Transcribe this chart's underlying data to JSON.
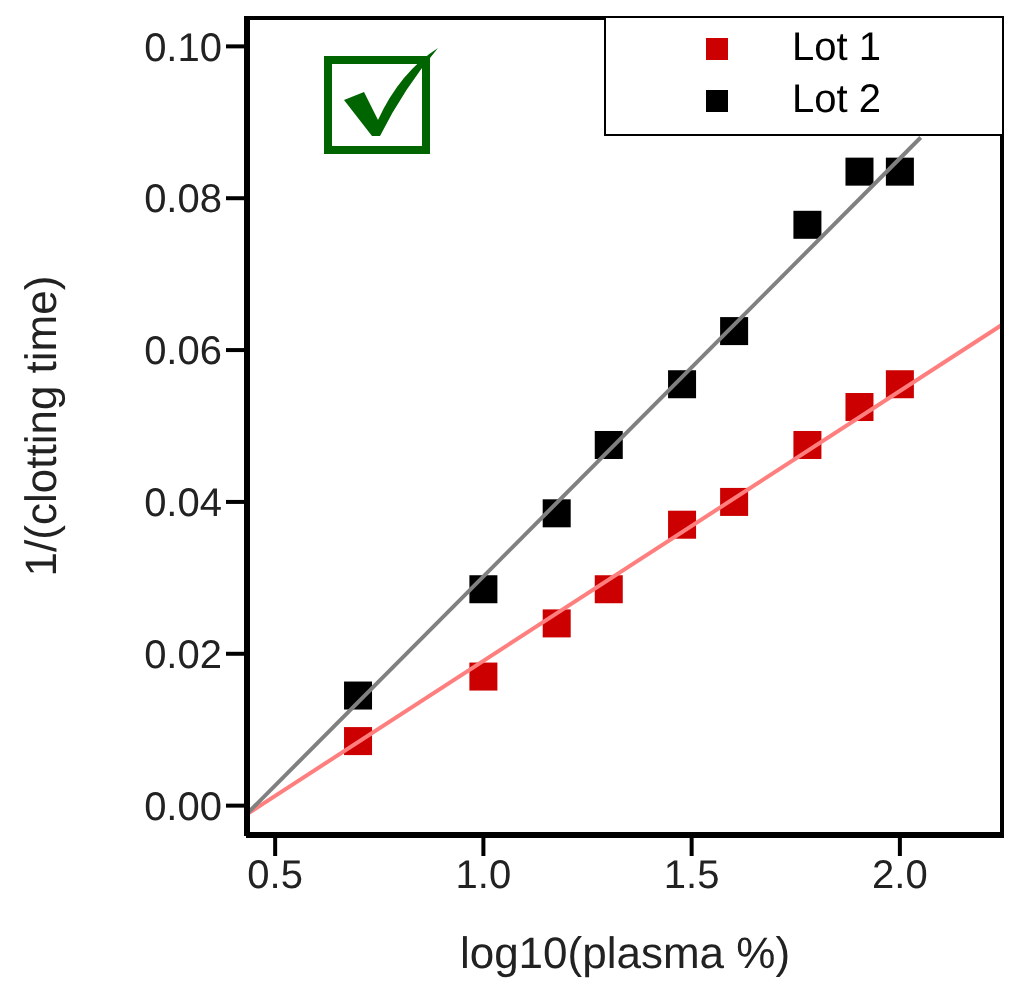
{
  "chart_data": {
    "type": "scatter",
    "xlabel": "log10(plasma %)",
    "ylabel": "1/(clotting time)",
    "x": [
      0.699,
      1.0,
      1.176,
      1.301,
      1.477,
      1.602,
      1.778,
      1.903,
      2.0
    ],
    "series": [
      {
        "name": "Lot 1",
        "color": "#cc0000",
        "values": [
          0.0085,
          0.017,
          0.024,
          0.0285,
          0.037,
          0.04,
          0.0475,
          0.0525,
          0.0555
        ]
      },
      {
        "name": "Lot 2",
        "color": "#000000",
        "values": [
          0.0145,
          0.0285,
          0.0385,
          0.0475,
          0.0555,
          0.0625,
          0.0765,
          0.0835,
          0.0835
        ]
      },
      {
        "type": "line",
        "marker": "none",
        "color": "#ff7f7f",
        "x": [
          0.43,
          2.25
        ],
        "values": [
          -0.0012,
          0.0635
        ]
      },
      {
        "type": "line",
        "marker": "none",
        "color": "#808080",
        "x": [
          0.43,
          2.05
        ],
        "values": [
          -0.0012,
          0.088
        ]
      }
    ],
    "xlim": [
      0.43,
      2.25
    ],
    "ylim": [
      -0.004,
      0.104
    ],
    "xticks": [
      {
        "value": 0.5,
        "label": "0.5"
      },
      {
        "value": 1.0,
        "label": "1.0"
      },
      {
        "value": 1.5,
        "label": "1.5"
      },
      {
        "value": 2.0,
        "label": "2.0"
      }
    ],
    "yticks": [
      {
        "value": 0,
        "label": "0.00"
      },
      {
        "value": 0.02,
        "label": "0.02"
      },
      {
        "value": 0.04,
        "label": "0.04"
      },
      {
        "value": 0.06,
        "label": "0.06"
      },
      {
        "value": 0.08,
        "label": "0.08"
      },
      {
        "value": 0.1,
        "label": "0.10"
      }
    ],
    "marker": "square",
    "legend": "top right",
    "grid": false
  }
}
